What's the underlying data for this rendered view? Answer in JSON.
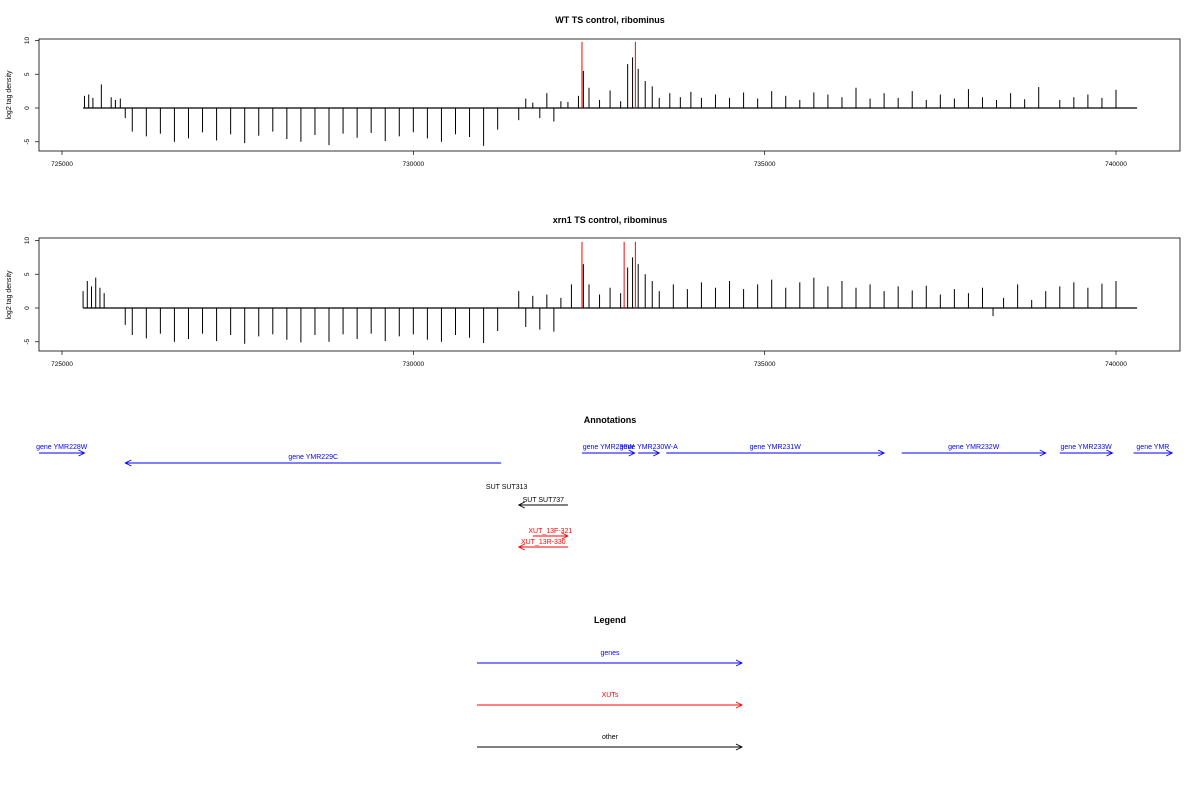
{
  "panels": [
    {
      "title": "WT TS control, ribominus",
      "ylabel": "log2 tag density"
    },
    {
      "title": "xrn1 TS control, ribominus",
      "ylabel": "log2 tag density"
    }
  ],
  "annotations": {
    "title": "Annotations",
    "genes": [
      {
        "label": "gene YMR228W",
        "start": 724300,
        "end": 725320,
        "strand": "+"
      },
      {
        "label": "gene YMR229C",
        "start": 725900,
        "end": 731250,
        "strand": "-"
      },
      {
        "label": "gene YMR230W",
        "start": 732400,
        "end": 733150,
        "strand": "+"
      },
      {
        "label": "gene YMR230W-A",
        "start": 733200,
        "end": 733500,
        "strand": "+"
      },
      {
        "label": "gene YMR231W",
        "start": 733600,
        "end": 736700,
        "strand": "+"
      },
      {
        "label": "gene YMR232W",
        "start": 736950,
        "end": 739000,
        "strand": "+"
      },
      {
        "label": "gene YMR233W",
        "start": 739200,
        "end": 739950,
        "strand": "+"
      },
      {
        "label": "gene YMR",
        "start": 740250,
        "end": 740800,
        "strand": "+"
      }
    ],
    "other": [
      {
        "label": "SUT SUT313",
        "start": 731300,
        "end": 731300,
        "strand": "+"
      },
      {
        "label": "SUT SUT737",
        "start": 731500,
        "end": 732200,
        "strand": "-"
      }
    ],
    "xuts": [
      {
        "label": "XUT_13F-321",
        "start": 731700,
        "end": 732200,
        "strand": "+"
      },
      {
        "label": "XUT_13R-330",
        "start": 731500,
        "end": 732200,
        "strand": "-"
      }
    ]
  },
  "legend": {
    "title": "Legend",
    "items": [
      {
        "label": "genes",
        "color": "#0000ff"
      },
      {
        "label": "XUTs",
        "color": "#ff0000"
      },
      {
        "label": "other",
        "color": "#000000"
      }
    ]
  },
  "colors": {
    "bar": "#000000",
    "highlight": "#ff0000",
    "gene": "#0000ff",
    "xut": "#ff0000",
    "other": "#000000"
  },
  "chart_data": [
    {
      "type": "bar",
      "title": "WT TS control, ribominus",
      "xlabel": "",
      "ylabel": "log2 tag density",
      "xlim": [
        725000,
        740500
      ],
      "ylim": [
        -6,
        10.5
      ],
      "xticks": [
        725000,
        730000,
        735000,
        740000
      ],
      "yticks": [
        -5,
        0,
        5,
        10
      ],
      "grid": false,
      "series": [
        {
          "values": [
            [
              725320,
              1.8
            ],
            [
              725380,
              2.0
            ],
            [
              725440,
              1.5
            ],
            [
              725560,
              3.5
            ],
            [
              725700,
              1.6
            ],
            [
              725760,
              1.2
            ],
            [
              725830,
              1.4
            ],
            [
              725900,
              -1.5
            ],
            [
              726000,
              -3.5
            ],
            [
              726200,
              -4.2
            ],
            [
              726400,
              -3.8
            ],
            [
              726600,
              -5.0
            ],
            [
              726800,
              -4.5
            ],
            [
              727000,
              -3.6
            ],
            [
              727200,
              -4.8
            ],
            [
              727400,
              -3.9
            ],
            [
              727600,
              -5.2
            ],
            [
              727800,
              -4.1
            ],
            [
              728000,
              -3.5
            ],
            [
              728200,
              -4.6
            ],
            [
              728400,
              -5.0
            ],
            [
              728600,
              -4.0
            ],
            [
              728800,
              -5.5
            ],
            [
              729000,
              -3.8
            ],
            [
              729200,
              -4.4
            ],
            [
              729400,
              -3.7
            ],
            [
              729600,
              -4.9
            ],
            [
              729800,
              -4.2
            ],
            [
              730000,
              -3.6
            ],
            [
              730200,
              -4.5
            ],
            [
              730400,
              -5.0
            ],
            [
              730600,
              -3.9
            ],
            [
              730800,
              -4.3
            ],
            [
              731000,
              -5.6
            ],
            [
              731200,
              -3.2
            ],
            [
              731500,
              -1.8
            ],
            [
              731600,
              1.4
            ],
            [
              731700,
              0.8
            ],
            [
              731800,
              -1.5
            ],
            [
              731900,
              2.2
            ],
            [
              732000,
              -2.0
            ],
            [
              732100,
              1.0
            ],
            [
              732200,
              0.9
            ],
            [
              732350,
              1.8
            ],
            [
              732420,
              5.5
            ],
            [
              732500,
              3.0
            ],
            [
              732650,
              1.2
            ],
            [
              732800,
              2.6
            ],
            [
              732950,
              1.0
            ],
            [
              733050,
              6.5
            ],
            [
              733120,
              7.5
            ],
            [
              733200,
              5.8
            ],
            [
              733300,
              4.0
            ],
            [
              733400,
              3.2
            ],
            [
              733500,
              1.5
            ],
            [
              733650,
              2.2
            ],
            [
              733800,
              1.6
            ],
            [
              733950,
              2.4
            ],
            [
              734100,
              1.5
            ],
            [
              734300,
              2.0
            ],
            [
              734500,
              1.5
            ],
            [
              734700,
              2.3
            ],
            [
              734900,
              1.4
            ],
            [
              735100,
              2.5
            ],
            [
              735300,
              1.8
            ],
            [
              735500,
              1.2
            ],
            [
              735700,
              2.3
            ],
            [
              735900,
              2.0
            ],
            [
              736100,
              1.6
            ],
            [
              736300,
              3.0
            ],
            [
              736500,
              1.4
            ],
            [
              736700,
              2.2
            ],
            [
              736900,
              1.5
            ],
            [
              737100,
              2.5
            ],
            [
              737300,
              1.2
            ],
            [
              737500,
              2.0
            ],
            [
              737700,
              1.4
            ],
            [
              737900,
              2.8
            ],
            [
              738100,
              1.6
            ],
            [
              738300,
              1.2
            ],
            [
              738500,
              2.2
            ],
            [
              738700,
              1.3
            ],
            [
              738900,
              3.1
            ],
            [
              739200,
              1.2
            ],
            [
              739400,
              1.6
            ],
            [
              739600,
              2.0
            ],
            [
              739800,
              1.5
            ],
            [
              740000,
              2.7
            ]
          ]
        }
      ],
      "highlights": [
        [
          732400,
          9.8
        ],
        [
          733160,
          9.8
        ]
      ]
    },
    {
      "type": "bar",
      "title": "xrn1 TS control, ribominus",
      "xlabel": "",
      "ylabel": "log2 tag density",
      "xlim": [
        725000,
        740500
      ],
      "ylim": [
        -6,
        10.5
      ],
      "xticks": [
        725000,
        730000,
        735000,
        740000
      ],
      "yticks": [
        -5,
        0,
        5,
        10
      ],
      "grid": false,
      "series": [
        {
          "values": [
            [
              725300,
              2.5
            ],
            [
              725360,
              4.0
            ],
            [
              725420,
              3.2
            ],
            [
              725480,
              4.5
            ],
            [
              725540,
              3.0
            ],
            [
              725600,
              2.2
            ],
            [
              725900,
              -2.5
            ],
            [
              726000,
              -4.0
            ],
            [
              726200,
              -4.5
            ],
            [
              726400,
              -3.8
            ],
            [
              726600,
              -5.0
            ],
            [
              726800,
              -4.6
            ],
            [
              727000,
              -3.8
            ],
            [
              727200,
              -4.9
            ],
            [
              727400,
              -4.0
            ],
            [
              727600,
              -5.3
            ],
            [
              727800,
              -4.2
            ],
            [
              728000,
              -3.9
            ],
            [
              728200,
              -4.7
            ],
            [
              728400,
              -5.1
            ],
            [
              728600,
              -4.0
            ],
            [
              728800,
              -5.0
            ],
            [
              729000,
              -3.9
            ],
            [
              729200,
              -4.6
            ],
            [
              729400,
              -3.8
            ],
            [
              729600,
              -4.9
            ],
            [
              729800,
              -4.2
            ],
            [
              730000,
              -3.9
            ],
            [
              730200,
              -4.7
            ],
            [
              730400,
              -5.0
            ],
            [
              730600,
              -4.0
            ],
            [
              730800,
              -4.4
            ],
            [
              731000,
              -5.2
            ],
            [
              731200,
              -3.4
            ],
            [
              731500,
              2.5
            ],
            [
              731600,
              -2.8
            ],
            [
              731700,
              1.8
            ],
            [
              731800,
              -3.2
            ],
            [
              731900,
              2.0
            ],
            [
              732000,
              -3.5
            ],
            [
              732100,
              1.5
            ],
            [
              732250,
              3.5
            ],
            [
              732420,
              6.5
            ],
            [
              732500,
              3.5
            ],
            [
              732650,
              2.0
            ],
            [
              732800,
              3.0
            ],
            [
              732950,
              2.2
            ],
            [
              733050,
              6.0
            ],
            [
              733120,
              7.5
            ],
            [
              733200,
              6.5
            ],
            [
              733300,
              5.0
            ],
            [
              733400,
              4.0
            ],
            [
              733500,
              2.5
            ],
            [
              733700,
              3.5
            ],
            [
              733900,
              2.8
            ],
            [
              734100,
              3.8
            ],
            [
              734300,
              3.0
            ],
            [
              734500,
              4.0
            ],
            [
              734700,
              2.8
            ],
            [
              734900,
              3.5
            ],
            [
              735100,
              4.2
            ],
            [
              735300,
              3.0
            ],
            [
              735500,
              3.8
            ],
            [
              735700,
              4.5
            ],
            [
              735900,
              3.2
            ],
            [
              736100,
              4.0
            ],
            [
              736300,
              3.0
            ],
            [
              736500,
              3.5
            ],
            [
              736700,
              2.5
            ],
            [
              736900,
              3.2
            ],
            [
              737100,
              2.6
            ],
            [
              737300,
              3.3
            ],
            [
              737500,
              2.0
            ],
            [
              737700,
              2.8
            ],
            [
              737900,
              2.2
            ],
            [
              738100,
              3.0
            ],
            [
              738250,
              -1.2
            ],
            [
              738400,
              1.5
            ],
            [
              738600,
              3.5
            ],
            [
              738800,
              1.2
            ],
            [
              739000,
              2.5
            ],
            [
              739200,
              3.2
            ],
            [
              739400,
              3.8
            ],
            [
              739600,
              3.0
            ],
            [
              739800,
              3.6
            ],
            [
              740000,
              4.0
            ]
          ]
        }
      ],
      "highlights": [
        [
          732400,
          9.8
        ],
        [
          733000,
          9.8
        ],
        [
          733160,
          9.8
        ]
      ]
    }
  ]
}
